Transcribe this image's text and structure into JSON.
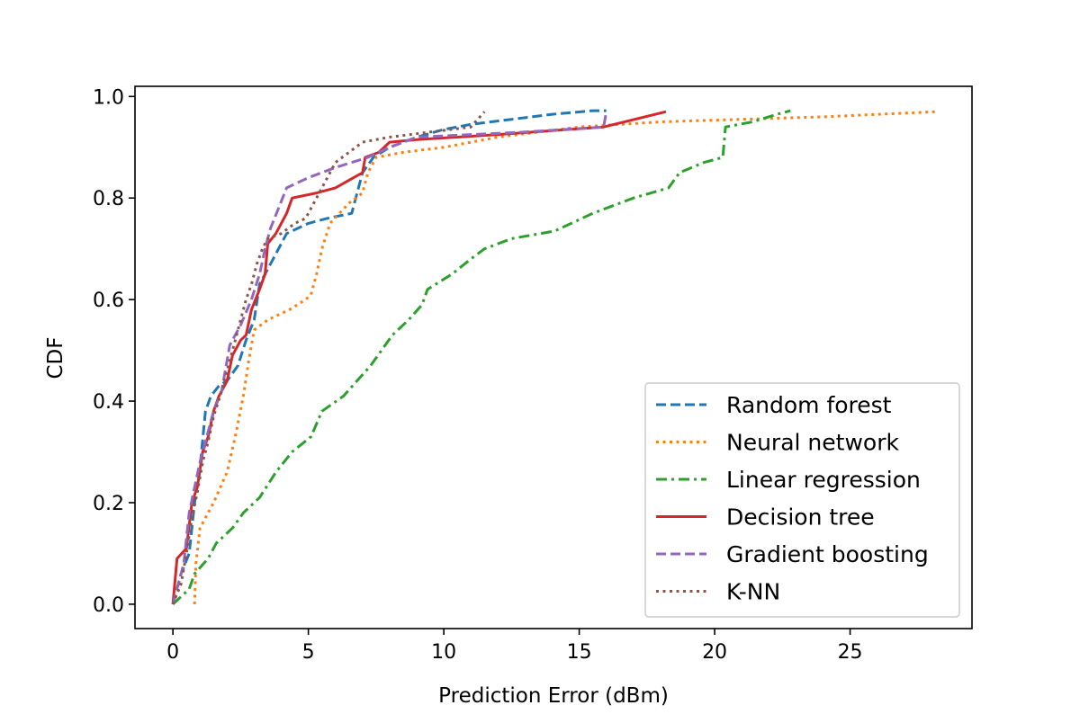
{
  "chart_data": {
    "type": "line",
    "title": "",
    "xlabel": "Prediction Error (dBm)",
    "ylabel": "CDF",
    "xlim": [
      -1.4,
      29.5
    ],
    "ylim": [
      -0.048,
      1.02
    ],
    "xticks": [
      0,
      5,
      10,
      15,
      20,
      25
    ],
    "xtick_labels": [
      "0",
      "5",
      "10",
      "15",
      "20",
      "25"
    ],
    "yticks": [
      0.0,
      0.2,
      0.4,
      0.6,
      0.8,
      1.0
    ],
    "ytick_labels": [
      "0.0",
      "0.2",
      "0.4",
      "0.6",
      "0.8",
      "1.0"
    ],
    "grid": false,
    "legend_position": "lower-right",
    "series": [
      {
        "name": "Random forest",
        "color": "#1f77b4",
        "dash": "dashed",
        "points": [
          [
            0,
            0
          ],
          [
            0.3,
            0.06
          ],
          [
            0.6,
            0.1
          ],
          [
            0.8,
            0.2
          ],
          [
            1.0,
            0.27
          ],
          [
            1.2,
            0.38
          ],
          [
            1.4,
            0.41
          ],
          [
            1.7,
            0.43
          ],
          [
            2.0,
            0.44
          ],
          [
            2.4,
            0.47
          ],
          [
            2.7,
            0.52
          ],
          [
            3.0,
            0.56
          ],
          [
            3.2,
            0.63
          ],
          [
            3.5,
            0.66
          ],
          [
            3.9,
            0.7
          ],
          [
            4.2,
            0.73
          ],
          [
            5.0,
            0.75
          ],
          [
            5.7,
            0.76
          ],
          [
            6.6,
            0.77
          ],
          [
            7.0,
            0.85
          ],
          [
            7.4,
            0.88
          ],
          [
            8.0,
            0.9
          ],
          [
            9.0,
            0.92
          ],
          [
            10.0,
            0.935
          ],
          [
            11.0,
            0.945
          ],
          [
            12.5,
            0.955
          ],
          [
            14.0,
            0.965
          ],
          [
            15.5,
            0.972
          ],
          [
            16.0,
            0.972
          ]
        ]
      },
      {
        "name": "Neural network",
        "color": "#ff7f0e",
        "dash": "dotted",
        "points": [
          [
            0.8,
            0
          ],
          [
            0.85,
            0.08
          ],
          [
            1.0,
            0.15
          ],
          [
            1.5,
            0.2
          ],
          [
            2.0,
            0.26
          ],
          [
            2.3,
            0.33
          ],
          [
            2.6,
            0.41
          ],
          [
            2.8,
            0.48
          ],
          [
            3.0,
            0.54
          ],
          [
            3.5,
            0.56
          ],
          [
            4.3,
            0.58
          ],
          [
            4.9,
            0.6
          ],
          [
            5.1,
            0.61
          ],
          [
            5.3,
            0.65
          ],
          [
            5.5,
            0.7
          ],
          [
            5.8,
            0.75
          ],
          [
            6.5,
            0.79
          ],
          [
            7.0,
            0.81
          ],
          [
            7.2,
            0.85
          ],
          [
            7.5,
            0.88
          ],
          [
            8.5,
            0.89
          ],
          [
            10.0,
            0.9
          ],
          [
            12.0,
            0.92
          ],
          [
            15.0,
            0.94
          ],
          [
            18.0,
            0.95
          ],
          [
            21.0,
            0.955
          ],
          [
            24.0,
            0.96
          ],
          [
            28.2,
            0.97
          ]
        ]
      },
      {
        "name": "Linear regression",
        "color": "#2ca02c",
        "dash": "dashdot",
        "points": [
          [
            0,
            0
          ],
          [
            0.6,
            0.03
          ],
          [
            0.8,
            0.06
          ],
          [
            1.3,
            0.09
          ],
          [
            1.6,
            0.12
          ],
          [
            2.2,
            0.15
          ],
          [
            2.6,
            0.18
          ],
          [
            3.2,
            0.21
          ],
          [
            3.8,
            0.26
          ],
          [
            4.4,
            0.3
          ],
          [
            5.1,
            0.33
          ],
          [
            5.5,
            0.38
          ],
          [
            6.3,
            0.41
          ],
          [
            7.3,
            0.47
          ],
          [
            7.7,
            0.5
          ],
          [
            8.1,
            0.53
          ],
          [
            8.7,
            0.56
          ],
          [
            9.2,
            0.59
          ],
          [
            9.4,
            0.62
          ],
          [
            10.3,
            0.65
          ],
          [
            11.0,
            0.68
          ],
          [
            11.5,
            0.7
          ],
          [
            12.5,
            0.72
          ],
          [
            14.1,
            0.735
          ],
          [
            15.5,
            0.77
          ],
          [
            17.0,
            0.8
          ],
          [
            18.3,
            0.82
          ],
          [
            18.7,
            0.85
          ],
          [
            19.6,
            0.87
          ],
          [
            20.3,
            0.88
          ],
          [
            20.4,
            0.94
          ],
          [
            21.4,
            0.95
          ],
          [
            22.3,
            0.965
          ],
          [
            22.8,
            0.972
          ]
        ]
      },
      {
        "name": "Decision tree",
        "color": "#d62728",
        "dash": "solid",
        "points": [
          [
            0,
            0
          ],
          [
            0.15,
            0.09
          ],
          [
            0.5,
            0.11
          ],
          [
            0.7,
            0.2
          ],
          [
            0.9,
            0.23
          ],
          [
            1.1,
            0.3
          ],
          [
            1.3,
            0.33
          ],
          [
            1.5,
            0.38
          ],
          [
            1.7,
            0.41
          ],
          [
            2.0,
            0.44
          ],
          [
            2.2,
            0.49
          ],
          [
            2.5,
            0.52
          ],
          [
            2.7,
            0.53
          ],
          [
            2.9,
            0.58
          ],
          [
            3.2,
            0.62
          ],
          [
            3.4,
            0.65
          ],
          [
            3.5,
            0.71
          ],
          [
            3.8,
            0.73
          ],
          [
            4.2,
            0.77
          ],
          [
            4.4,
            0.8
          ],
          [
            5.3,
            0.81
          ],
          [
            6.0,
            0.82
          ],
          [
            7.0,
            0.85
          ],
          [
            7.1,
            0.88
          ],
          [
            7.6,
            0.89
          ],
          [
            8.0,
            0.91
          ],
          [
            9.0,
            0.915
          ],
          [
            12.0,
            0.925
          ],
          [
            15.9,
            0.94
          ],
          [
            18.2,
            0.97
          ]
        ]
      },
      {
        "name": "Gradient boosting",
        "color": "#9467bd",
        "dash": "dashed",
        "points": [
          [
            0,
            0
          ],
          [
            0.4,
            0.08
          ],
          [
            0.6,
            0.18
          ],
          [
            0.8,
            0.23
          ],
          [
            1.0,
            0.28
          ],
          [
            1.3,
            0.34
          ],
          [
            1.5,
            0.38
          ],
          [
            1.8,
            0.42
          ],
          [
            2.1,
            0.51
          ],
          [
            2.5,
            0.55
          ],
          [
            2.9,
            0.6
          ],
          [
            3.2,
            0.65
          ],
          [
            3.4,
            0.7
          ],
          [
            3.6,
            0.74
          ],
          [
            4.2,
            0.82
          ],
          [
            5.0,
            0.84
          ],
          [
            6.0,
            0.86
          ],
          [
            7.2,
            0.88
          ],
          [
            8.0,
            0.9
          ],
          [
            9.0,
            0.92
          ],
          [
            11.0,
            0.925
          ],
          [
            13.0,
            0.93
          ],
          [
            15.9,
            0.94
          ],
          [
            16.0,
            0.97
          ]
        ]
      },
      {
        "name": "K-NN",
        "color": "#8c564b",
        "dash": "dotted",
        "points": [
          [
            0,
            0
          ],
          [
            0.3,
            0.04
          ],
          [
            0.5,
            0.1
          ],
          [
            0.7,
            0.17
          ],
          [
            0.9,
            0.22
          ],
          [
            1.1,
            0.28
          ],
          [
            1.3,
            0.32
          ],
          [
            1.5,
            0.37
          ],
          [
            1.8,
            0.42
          ],
          [
            2.0,
            0.46
          ],
          [
            2.3,
            0.52
          ],
          [
            2.5,
            0.56
          ],
          [
            2.7,
            0.6
          ],
          [
            2.9,
            0.63
          ],
          [
            3.1,
            0.67
          ],
          [
            3.3,
            0.7
          ],
          [
            3.5,
            0.72
          ],
          [
            4.0,
            0.73
          ],
          [
            4.5,
            0.75
          ],
          [
            4.9,
            0.76
          ],
          [
            5.3,
            0.8
          ],
          [
            6.0,
            0.87
          ],
          [
            7.0,
            0.91
          ],
          [
            8.0,
            0.92
          ],
          [
            9.5,
            0.93
          ],
          [
            11.0,
            0.94
          ],
          [
            11.5,
            0.97
          ]
        ]
      }
    ]
  }
}
